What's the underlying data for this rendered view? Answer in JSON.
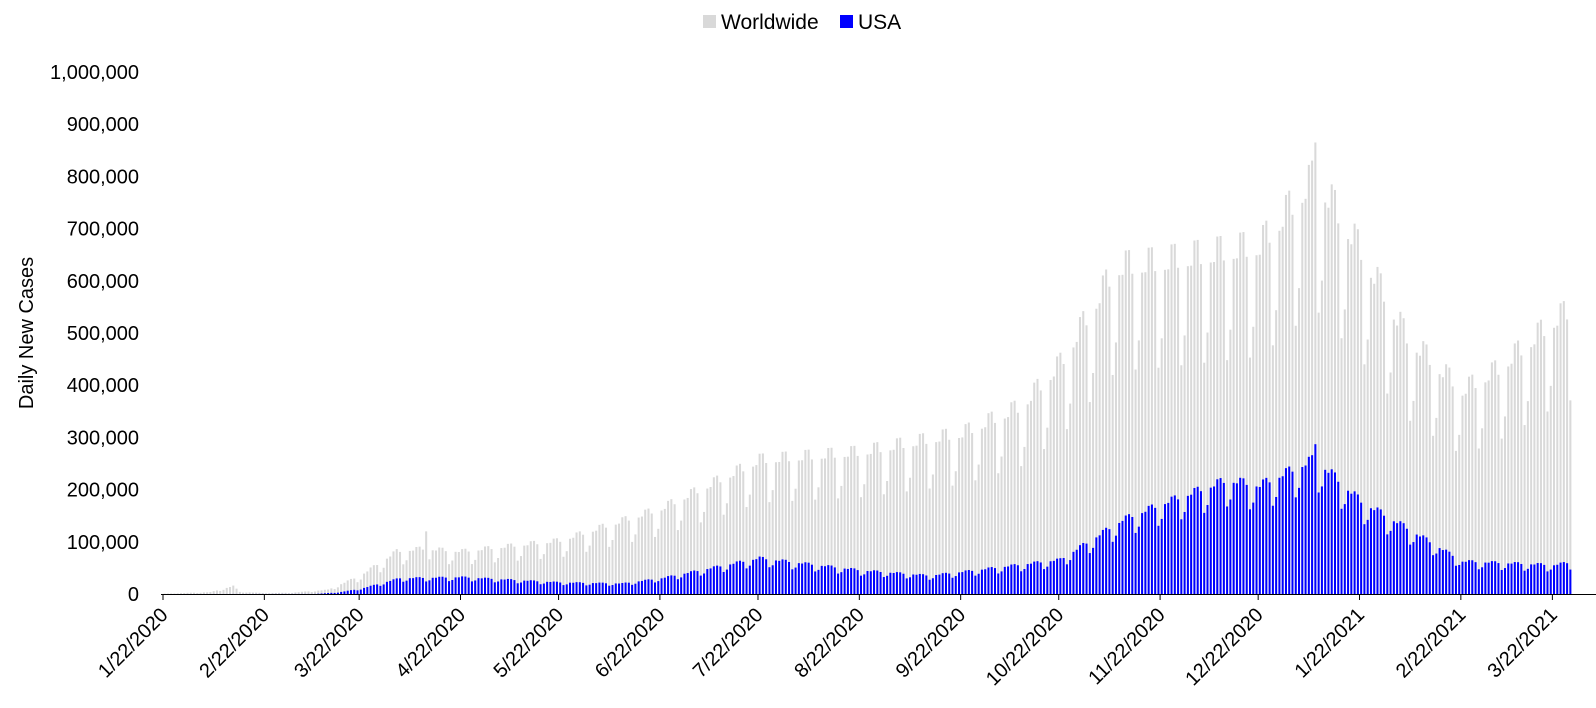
{
  "chart_data": {
    "type": "bar",
    "x_start": "1/22/2020",
    "x_end": "3/27/2021",
    "ylabel": "Daily New Cases",
    "ylim": [
      0,
      1000000
    ],
    "y_ticks": [
      "0",
      "100,000",
      "200,000",
      "300,000",
      "400,000",
      "500,000",
      "600,000",
      "700,000",
      "800,000",
      "900,000",
      "1,000,000"
    ],
    "y_tick_values": [
      0,
      100000,
      200000,
      300000,
      400000,
      500000,
      600000,
      700000,
      800000,
      900000,
      1000000
    ],
    "x_tick_labels": [
      "1/22/2020",
      "2/22/2020",
      "3/22/2020",
      "4/22/2020",
      "5/22/2020",
      "6/22/2020",
      "7/22/2020",
      "8/22/2020",
      "9/22/2020",
      "10/22/2020",
      "11/22/2020",
      "12/22/2020",
      "1/22/2021",
      "2/22/2021",
      "3/22/2021"
    ],
    "legend": {
      "placement": "top-center"
    },
    "grid": false,
    "series": [
      {
        "name": "Worldwide",
        "color": "#d9d9d9",
        "anchors": [
          [
            "1/22/2020",
            600
          ],
          [
            "2/5/2020",
            3500
          ],
          [
            "2/12/2020",
            15000
          ],
          [
            "2/14/2020",
            4000
          ],
          [
            "2/22/2020",
            1500
          ],
          [
            "3/1/2020",
            2500
          ],
          [
            "3/12/2020",
            8000
          ],
          [
            "3/22/2020",
            35000
          ],
          [
            "4/2/2020",
            80000
          ],
          [
            "4/10/2020",
            85000
          ],
          [
            "4/22/2020",
            80000
          ],
          [
            "5/22/2020",
            100000
          ],
          [
            "6/22/2020",
            160000
          ],
          [
            "7/22/2020",
            250000
          ],
          [
            "8/22/2020",
            265000
          ],
          [
            "9/22/2020",
            300000
          ],
          [
            "10/10/2020",
            350000
          ],
          [
            "10/22/2020",
            430000
          ],
          [
            "11/8/2020",
            610000
          ],
          [
            "11/22/2020",
            620000
          ],
          [
            "12/22/2020",
            650000
          ],
          [
            "1/8/2021",
            780000
          ],
          [
            "1/22/2021",
            640000
          ],
          [
            "2/5/2021",
            480000
          ],
          [
            "2/22/2021",
            380000
          ],
          [
            "3/5/2021",
            420000
          ],
          [
            "3/22/2021",
            510000
          ],
          [
            "3/27/2021",
            530000
          ]
        ],
        "weekly_dip": 0.3,
        "highlights": [
          [
            "4/11/2020",
            120000
          ],
          [
            "1/8/2021",
            865000
          ]
        ]
      },
      {
        "name": "USA",
        "color": "#0000ff",
        "anchors": [
          [
            "1/22/2020",
            0
          ],
          [
            "3/8/2020",
            200
          ],
          [
            "3/15/2020",
            3000
          ],
          [
            "3/22/2020",
            10000
          ],
          [
            "4/3/2020",
            30000
          ],
          [
            "4/22/2020",
            32000
          ],
          [
            "5/22/2020",
            22000
          ],
          [
            "6/10/2020",
            20000
          ],
          [
            "6/22/2020",
            30000
          ],
          [
            "7/22/2020",
            68000
          ],
          [
            "8/22/2020",
            45000
          ],
          [
            "9/12/2020",
            35000
          ],
          [
            "9/22/2020",
            42000
          ],
          [
            "10/22/2020",
            65000
          ],
          [
            "11/10/2020",
            140000
          ],
          [
            "11/22/2020",
            170000
          ],
          [
            "12/12/2020",
            215000
          ],
          [
            "12/22/2020",
            205000
          ],
          [
            "1/8/2021",
            255000
          ],
          [
            "1/22/2021",
            175000
          ],
          [
            "2/5/2021",
            125000
          ],
          [
            "2/22/2021",
            62000
          ],
          [
            "3/22/2021",
            55000
          ],
          [
            "3/27/2021",
            60000
          ]
        ],
        "weekly_dip": 0.22,
        "highlights": [
          [
            "1/8/2021",
            287000
          ]
        ]
      }
    ]
  }
}
